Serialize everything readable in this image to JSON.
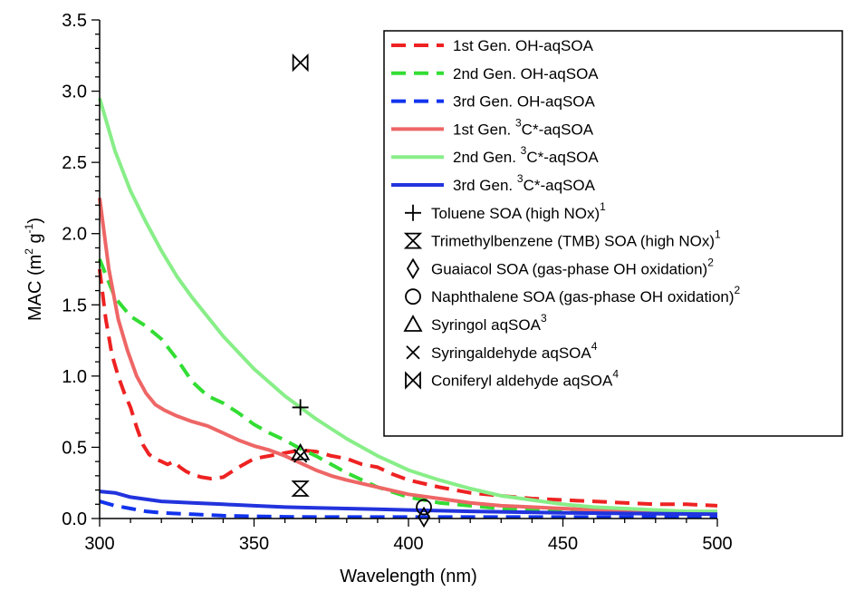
{
  "chart_data": {
    "type": "line",
    "xlabel": "Wavelength (nm)",
    "ylabel": {
      "base": "MAC (m",
      "sup1": "2",
      "mid": " g",
      "sup2": "-1",
      "end": ")"
    },
    "xlim": [
      300,
      500
    ],
    "ylim": [
      0,
      3.5
    ],
    "xticks": [
      300,
      350,
      400,
      450,
      500
    ],
    "yticks": [
      0.0,
      0.5,
      1.0,
      1.5,
      2.0,
      2.5,
      3.0,
      3.5
    ],
    "grid": false,
    "legend_position": "top-right",
    "series": [
      {
        "name": "1st Gen. OH-aqSOA",
        "label": {
          "pre": "1st Gen. OH-aqSOA",
          "sup": "",
          "post": ""
        },
        "style": "dashed",
        "color": "#ee2222",
        "x": [
          300,
          302,
          304,
          306,
          308,
          310,
          312,
          314,
          316,
          318,
          320,
          322,
          324,
          326,
          328,
          330,
          333,
          336,
          340,
          345,
          350,
          355,
          360,
          365,
          370,
          375,
          380,
          385,
          390,
          395,
          400,
          410,
          420,
          430,
          440,
          450,
          460,
          470,
          480,
          490,
          500
        ],
        "y": [
          1.75,
          1.4,
          1.15,
          1.0,
          0.88,
          0.78,
          0.64,
          0.52,
          0.45,
          0.42,
          0.4,
          0.38,
          0.4,
          0.36,
          0.33,
          0.31,
          0.29,
          0.28,
          0.29,
          0.36,
          0.42,
          0.44,
          0.46,
          0.48,
          0.47,
          0.44,
          0.42,
          0.38,
          0.36,
          0.31,
          0.27,
          0.22,
          0.18,
          0.16,
          0.14,
          0.13,
          0.12,
          0.11,
          0.1,
          0.1,
          0.09
        ]
      },
      {
        "name": "2nd Gen. OH-aqSOA",
        "label": {
          "pre": "2nd Gen. OH-aqSOA",
          "sup": "",
          "post": ""
        },
        "style": "dashed",
        "color": "#33dd33",
        "x": [
          300,
          305,
          310,
          315,
          320,
          325,
          330,
          335,
          340,
          345,
          350,
          355,
          360,
          365,
          370,
          375,
          380,
          390,
          400,
          410,
          420,
          430,
          440,
          450,
          460,
          470,
          480,
          490,
          500
        ],
        "y": [
          1.82,
          1.55,
          1.42,
          1.35,
          1.26,
          1.12,
          0.96,
          0.86,
          0.81,
          0.74,
          0.66,
          0.6,
          0.55,
          0.49,
          0.44,
          0.38,
          0.32,
          0.22,
          0.15,
          0.11,
          0.09,
          0.07,
          0.06,
          0.05,
          0.045,
          0.04,
          0.04,
          0.035,
          0.03
        ]
      },
      {
        "name": "3rd Gen. OH-aqSOA",
        "label": {
          "pre": "3rd Gen. OH-aqSOA",
          "sup": "",
          "post": ""
        },
        "style": "dashed",
        "color": "#1133ee",
        "x": [
          300,
          305,
          310,
          315,
          320,
          330,
          340,
          350,
          360,
          370,
          380,
          400,
          420,
          450,
          500
        ],
        "y": [
          0.12,
          0.09,
          0.07,
          0.05,
          0.04,
          0.03,
          0.02,
          0.015,
          0.012,
          0.01,
          0.01,
          0.01,
          0.01,
          0.01,
          0.01
        ]
      },
      {
        "name": "1st Gen. 3C*-aqSOA",
        "label": {
          "pre": "1st Gen. ",
          "sup": "3",
          "post": "C*-aqSOA"
        },
        "style": "solid",
        "color": "#ee6666",
        "x": [
          300,
          303,
          306,
          309,
          312,
          315,
          318,
          321,
          325,
          330,
          335,
          340,
          345,
          350,
          355,
          360,
          365,
          370,
          375,
          380,
          390,
          400,
          410,
          420,
          430,
          440,
          450,
          460,
          470,
          480,
          490,
          500
        ],
        "y": [
          2.25,
          1.75,
          1.4,
          1.18,
          1.0,
          0.88,
          0.8,
          0.76,
          0.72,
          0.68,
          0.65,
          0.6,
          0.55,
          0.51,
          0.48,
          0.44,
          0.39,
          0.34,
          0.3,
          0.27,
          0.22,
          0.17,
          0.14,
          0.11,
          0.09,
          0.08,
          0.07,
          0.06,
          0.05,
          0.05,
          0.04,
          0.04
        ]
      },
      {
        "name": "2nd Gen. 3C*-aqSOA",
        "label": {
          "pre": "2nd Gen. ",
          "sup": "3",
          "post": "C*-aqSOA"
        },
        "style": "solid",
        "color": "#88ee88",
        "x": [
          300,
          305,
          310,
          315,
          320,
          325,
          330,
          340,
          350,
          360,
          370,
          380,
          390,
          400,
          410,
          420,
          430,
          440,
          450,
          460,
          470,
          480,
          490,
          500
        ],
        "y": [
          2.95,
          2.58,
          2.3,
          2.08,
          1.88,
          1.7,
          1.55,
          1.28,
          1.05,
          0.86,
          0.7,
          0.56,
          0.44,
          0.34,
          0.27,
          0.21,
          0.16,
          0.13,
          0.1,
          0.08,
          0.07,
          0.06,
          0.05,
          0.05
        ]
      },
      {
        "name": "3rd Gen. 3C*-aqSOA",
        "label": {
          "pre": "3rd Gen. ",
          "sup": "3",
          "post": "C*-aqSOA"
        },
        "style": "solid",
        "color": "#2233dd",
        "x": [
          300,
          305,
          310,
          320,
          330,
          340,
          350,
          360,
          370,
          380,
          390,
          400,
          420,
          450,
          500
        ],
        "y": [
          0.19,
          0.18,
          0.15,
          0.12,
          0.11,
          0.1,
          0.09,
          0.08,
          0.075,
          0.07,
          0.065,
          0.06,
          0.05,
          0.04,
          0.03
        ]
      }
    ],
    "markers": [
      {
        "name": "Toluene SOA (high NOx)",
        "label": {
          "pre": "Toluene SOA (high NOx)",
          "sup": "1",
          "post": ""
        },
        "symbol": "plus",
        "points": [
          [
            365,
            0.78
          ]
        ]
      },
      {
        "name": "Trimethylbenzene (TMB) SOA (high NOx)",
        "label": {
          "pre": "Trimethylbenzene (TMB) SOA (high NOx)",
          "sup": "1",
          "post": ""
        },
        "symbol": "hourglass",
        "points": [
          [
            365,
            0.21
          ]
        ]
      },
      {
        "name": "Guaiacol SOA (gas-phase OH oxidation)",
        "label": {
          "pre": "Guaiacol SOA (gas-phase OH oxidation)",
          "sup": "2",
          "post": ""
        },
        "symbol": "diamond",
        "points": [
          [
            405,
            0.01
          ]
        ]
      },
      {
        "name": "Naphthalene SOA (gas-phase OH oxidation)",
        "label": {
          "pre": "Naphthalene SOA (gas-phase OH oxidation)",
          "sup": "2",
          "post": ""
        },
        "symbol": "circle",
        "points": [
          [
            405,
            0.08
          ]
        ]
      },
      {
        "name": "Syringol aqSOA",
        "label": {
          "pre": "Syringol aqSOA",
          "sup": "3",
          "post": ""
        },
        "symbol": "triangle",
        "points": [
          [
            365,
            0.46
          ]
        ]
      },
      {
        "name": "Syringaldehyde aqSOA",
        "label": {
          "pre": "Syringaldehyde aqSOA",
          "sup": "4",
          "post": ""
        },
        "symbol": "x",
        "points": [
          [
            365,
            0.44
          ]
        ]
      },
      {
        "name": "Coniferyl aldehyde aqSOA",
        "label": {
          "pre": "Coniferyl aldehyde aqSOA",
          "sup": "4",
          "post": ""
        },
        "symbol": "bowtie",
        "points": [
          [
            365,
            3.2
          ]
        ]
      }
    ]
  }
}
